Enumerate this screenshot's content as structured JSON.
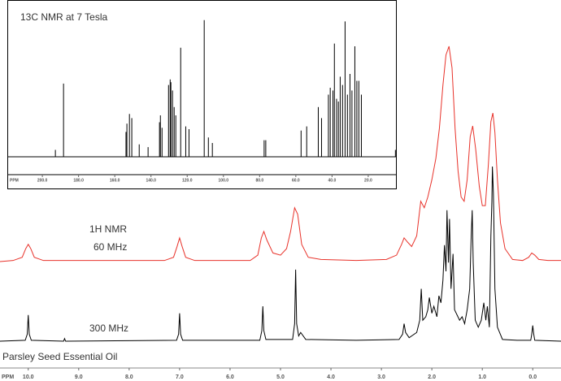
{
  "chart_data": [
    {
      "type": "line",
      "title": "Parsley Seed Essential Oil",
      "xlabel": "PPM",
      "annotations": [
        "1H NMR"
      ],
      "xlim": [
        10.56,
        -0.56
      ],
      "xticks": [
        {
          "value": 10,
          "label": "10.0"
        },
        {
          "value": 9,
          "label": "9.0"
        },
        {
          "value": 8,
          "label": "8.0"
        },
        {
          "value": 7,
          "label": "7.0"
        },
        {
          "value": 6,
          "label": "6.0"
        },
        {
          "value": 5,
          "label": "5.0"
        },
        {
          "value": 4,
          "label": "4.0"
        },
        {
          "value": 3,
          "label": "3.0"
        },
        {
          "value": 2,
          "label": "2.0"
        },
        {
          "value": 1,
          "label": "1.0"
        },
        {
          "value": 0,
          "label": "0.0"
        }
      ],
      "series": [
        {
          "name": "60 MHz",
          "color": "#e8322a",
          "x": [
            10.56,
            10.3,
            10.12,
            10.05,
            10.0,
            9.95,
            9.88,
            9.7,
            7.3,
            7.12,
            7.05,
            7.0,
            6.95,
            6.88,
            6.7,
            5.6,
            5.45,
            5.38,
            5.33,
            5.27,
            5.15,
            5.0,
            4.88,
            4.8,
            4.72,
            4.66,
            4.58,
            4.45,
            4.2,
            3.5,
            2.9,
            2.7,
            2.6,
            2.55,
            2.48,
            2.4,
            2.3,
            2.22,
            2.15,
            2.08,
            2.0,
            1.92,
            1.85,
            1.78,
            1.72,
            1.66,
            1.6,
            1.54,
            1.48,
            1.42,
            1.36,
            1.3,
            1.24,
            1.19,
            1.13,
            1.06,
            1.0,
            0.94,
            0.88,
            0.83,
            0.79,
            0.75,
            0.7,
            0.64,
            0.55,
            0.4,
            0.2,
            0.08,
            0.02,
            -0.04,
            -0.12,
            -0.3,
            -0.56
          ],
          "values": [
            0,
            0.5,
            2,
            6,
            8,
            6,
            2,
            0.5,
            0.5,
            2,
            7,
            11,
            7,
            2,
            0.5,
            0.5,
            3,
            11,
            14,
            10,
            4,
            3,
            6,
            14,
            25,
            22,
            8,
            2,
            1,
            0.5,
            1,
            3,
            8,
            11,
            9,
            7,
            12,
            28,
            25,
            30,
            38,
            48,
            62,
            82,
            96,
            100,
            90,
            62,
            42,
            30,
            28,
            38,
            58,
            63,
            52,
            35,
            26,
            26,
            45,
            65,
            69,
            60,
            38,
            18,
            6,
            1,
            0.5,
            2,
            4,
            3,
            1,
            0.5,
            0.5
          ]
        },
        {
          "name": "300 MHz",
          "color": "#000000",
          "x": [
            10.56,
            10.06,
            10.02,
            10.0,
            9.98,
            9.94,
            9.3,
            9.28,
            9.26,
            7.06,
            7.02,
            7.0,
            6.98,
            6.94,
            5.41,
            5.37,
            5.35,
            5.33,
            5.29,
            4.76,
            4.72,
            4.7,
            4.68,
            4.64,
            4.6,
            4.5,
            3.5,
            2.65,
            2.58,
            2.55,
            2.52,
            2.45,
            2.3,
            2.24,
            2.21,
            2.18,
            2.12,
            2.08,
            2.05,
            2.0,
            1.96,
            1.9,
            1.86,
            1.82,
            1.78,
            1.75,
            1.72,
            1.7,
            1.67,
            1.65,
            1.62,
            1.58,
            1.55,
            1.5,
            1.45,
            1.4,
            1.35,
            1.3,
            1.25,
            1.22,
            1.2,
            1.18,
            1.14,
            1.08,
            1.02,
            0.97,
            0.93,
            0.9,
            0.86,
            0.83,
            0.81,
            0.8,
            0.78,
            0.75,
            0.7,
            0.6,
            0.3,
            0.04,
            0.02,
            0.0,
            -0.02,
            -0.04,
            -0.56
          ],
          "values": [
            0,
            0.5,
            4,
            15,
            4,
            0.5,
            0,
            1.5,
            0,
            0.5,
            4,
            16,
            4,
            0.5,
            0.5,
            6,
            20,
            6,
            1,
            1,
            10,
            41,
            10,
            3,
            5,
            1,
            0.5,
            1,
            4,
            10,
            5,
            2,
            5,
            12,
            30,
            12,
            14,
            18,
            25,
            16,
            20,
            14,
            26,
            22,
            35,
            55,
            40,
            75,
            45,
            70,
            30,
            50,
            18,
            15,
            12,
            14,
            10,
            18,
            30,
            60,
            75,
            45,
            12,
            8,
            12,
            22,
            12,
            20,
            8,
            60,
            80,
            100,
            85,
            30,
            8,
            1,
            0.5,
            0.5,
            4,
            9,
            4,
            0.5,
            0
          ]
        }
      ]
    },
    {
      "type": "stick",
      "title": "13C NMR at 7 Tesla",
      "xlabel": "PPM",
      "xlim": [
        218.9,
        4.7
      ],
      "xticks": [
        {
          "value": 200,
          "label": "200.0"
        },
        {
          "value": 180,
          "label": "180.0"
        },
        {
          "value": 160,
          "label": "160.0"
        },
        {
          "value": 140,
          "label": "140.0"
        },
        {
          "value": 120,
          "label": "120.0"
        },
        {
          "value": 100,
          "label": "100.0"
        },
        {
          "value": 80,
          "label": "80.0"
        },
        {
          "value": 60,
          "label": "60.0"
        },
        {
          "value": 40,
          "label": "40.0"
        },
        {
          "value": 20,
          "label": "20.0"
        }
      ],
      "color": "#000000",
      "x": [
        192.8,
        188.3,
        153.8,
        153.3,
        151.9,
        150.6,
        146.5,
        141.6,
        135.3,
        134.8,
        133.9,
        130.3,
        129.4,
        129.0,
        128.1,
        127.2,
        126.3,
        123.6,
        120.8,
        119.0,
        110.6,
        108.3,
        106.1,
        77.5,
        76.6,
        57.1,
        54.0,
        47.6,
        45.8,
        42.0,
        41.0,
        39.5,
        38.7,
        37.5,
        36.5,
        35.5,
        34.2,
        32.8,
        31.5,
        30.1,
        29.0,
        27.4,
        26.3,
        25.2,
        23.8,
        5.0
      ],
      "values": [
        5,
        53,
        18,
        24,
        31,
        28,
        9,
        7,
        25,
        30,
        21,
        52,
        56,
        54,
        48,
        36,
        30,
        79,
        22,
        20,
        99,
        14,
        10,
        12,
        12,
        19,
        22,
        36,
        28,
        45,
        50,
        48,
        82,
        42,
        40,
        58,
        52,
        98,
        45,
        60,
        48,
        80,
        55,
        55,
        45,
        5
      ]
    }
  ]
}
